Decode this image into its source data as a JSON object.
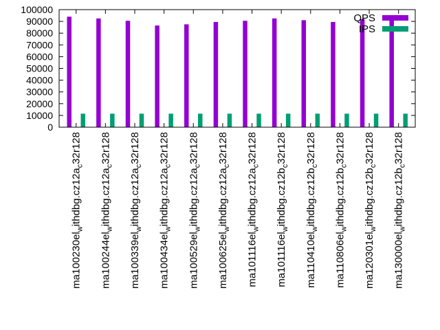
{
  "chart_data": {
    "type": "bar",
    "title": "",
    "xlabel": "",
    "ylabel": "",
    "ylim": [
      0,
      100000
    ],
    "yticks": [
      0,
      10000,
      20000,
      30000,
      40000,
      50000,
      60000,
      70000,
      80000,
      90000,
      100000
    ],
    "legend_position": "top-right",
    "categories": [
      {
        "prefix": "ma100230",
        "rest": "ithdbg.cz12a",
        "sub": "c",
        "tail": "32r128"
      },
      {
        "prefix": "ma100244",
        "rest": "ithdbg.cz12a",
        "sub": "c",
        "tail": "32r128"
      },
      {
        "prefix": "ma100339",
        "rest": "ithdbg.cz12a",
        "sub": "c",
        "tail": "32r128"
      },
      {
        "prefix": "ma100434",
        "rest": "ithdbg.cz12a",
        "sub": "c",
        "tail": "32r128"
      },
      {
        "prefix": "ma100529",
        "rest": "ithdbg.cz12a",
        "sub": "c",
        "tail": "32r128"
      },
      {
        "prefix": "ma100625",
        "rest": "ithdbg.cz12a",
        "sub": "c",
        "tail": "32r128"
      },
      {
        "prefix": "ma101116",
        "rest": "ithdbg.cz12a",
        "sub": "c",
        "tail": "32r128"
      },
      {
        "prefix": "ma101116",
        "rest": "ithdbg.cz12b",
        "sub": "c",
        "tail": "32r128"
      },
      {
        "prefix": "ma110410",
        "rest": "ithdbg.cz12b",
        "sub": "c",
        "tail": "32r128"
      },
      {
        "prefix": "ma110806",
        "rest": "ithdbg.cz12b",
        "sub": "c",
        "tail": "32r128"
      },
      {
        "prefix": "ma120301",
        "rest": "ithdbg.cz12b",
        "sub": "c",
        "tail": "32r128"
      },
      {
        "prefix": "ma130000",
        "rest": "ithdbg.cz12b",
        "sub": "c",
        "tail": "32r128"
      }
    ],
    "series": [
      {
        "name": "QPS",
        "color": "#9400d3",
        "values": [
          94000,
          92500,
          90500,
          86500,
          87500,
          89500,
          90500,
          92500,
          91000,
          89500,
          92000,
          92000
        ]
      },
      {
        "name": "IPS",
        "color": "#009e73",
        "values": [
          11500,
          11500,
          11500,
          11500,
          11500,
          11500,
          11500,
          11500,
          11500,
          11500,
          11500,
          11500
        ]
      }
    ]
  }
}
